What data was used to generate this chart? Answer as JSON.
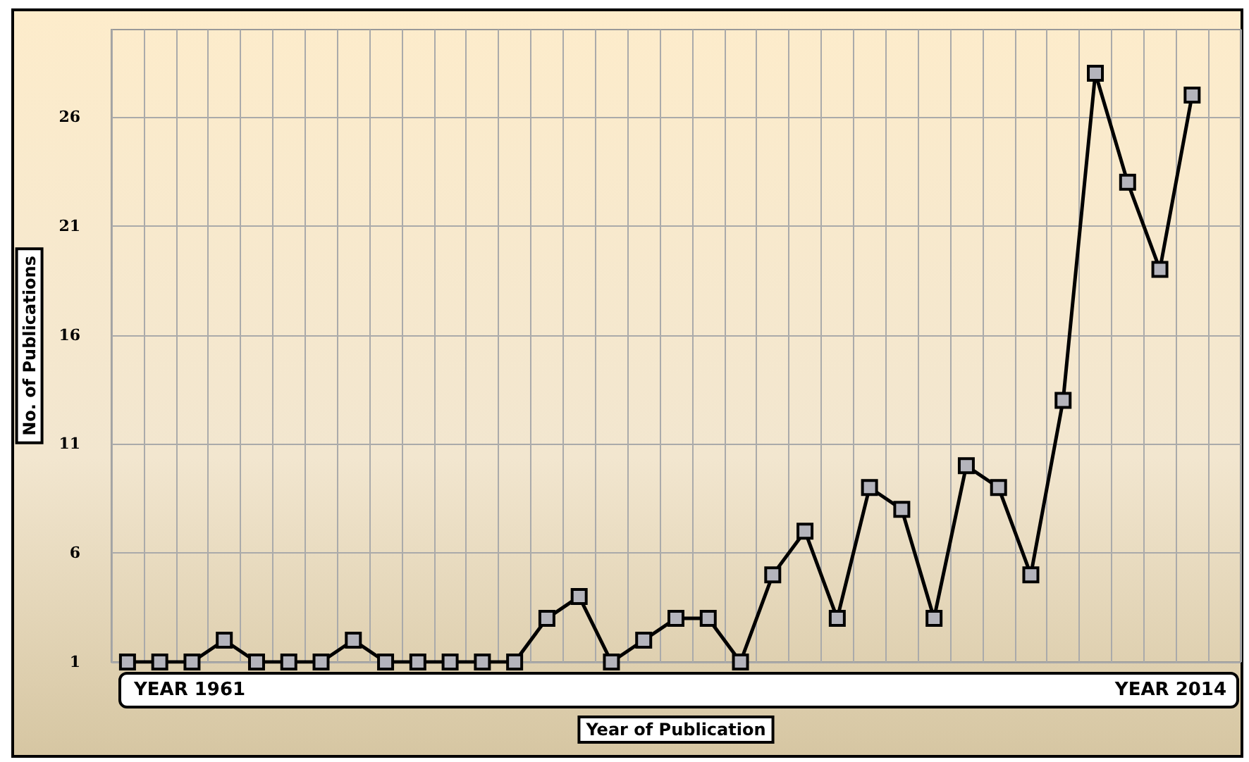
{
  "chart_data": {
    "type": "line",
    "xlabel": "Year of Publication",
    "ylabel": "No. of Publications",
    "annotations": [
      "YEAR 1961",
      "YEAR 2014"
    ],
    "categories": [
      null,
      null,
      null,
      null,
      null,
      null,
      null,
      null,
      null,
      null,
      null,
      null,
      null,
      null,
      null,
      null,
      null,
      null,
      null,
      null,
      null,
      null,
      null,
      null,
      null,
      null,
      null,
      null,
      null,
      null,
      null,
      null,
      null,
      null,
      null
    ],
    "series": [
      {
        "color": "#000000",
        "values": [
          1,
          1,
          1,
          2,
          1,
          1,
          1,
          2,
          1,
          1,
          1,
          1,
          1,
          3,
          4,
          1,
          2,
          3,
          3,
          1,
          5,
          7,
          3,
          9,
          8,
          3,
          10,
          9,
          5,
          13,
          28,
          23,
          19,
          27,
          null
        ]
      }
    ],
    "ylim": [
      1,
      30
    ],
    "yticks": [
      1,
      6,
      11,
      16,
      21,
      26
    ],
    "grid": true,
    "marker": "square",
    "line_style": "solid"
  }
}
